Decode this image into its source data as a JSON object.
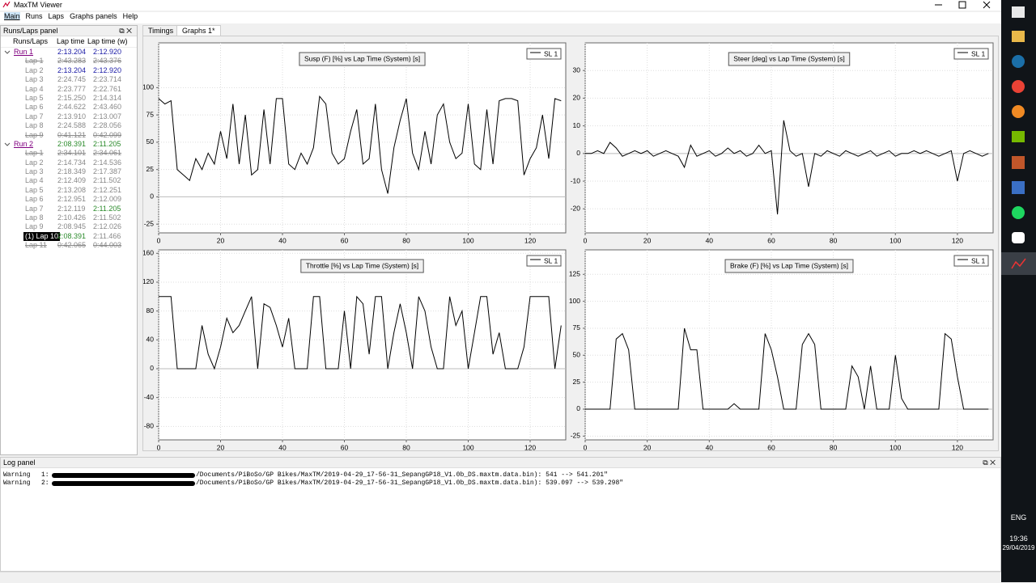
{
  "window": {
    "title": "MaxTM Viewer"
  },
  "menu": [
    "Main",
    "Runs",
    "Laps",
    "Graphs panels",
    "Help"
  ],
  "laps_panel": {
    "title": "Runs/Laps panel",
    "headers": [
      "Runs/Laps",
      "Lap time",
      "Lap time (w)"
    ],
    "runs": [
      {
        "name": "Run 1",
        "time": "2:13.204",
        "time_w": "2:12.920",
        "time_color": "#1a1aa6",
        "time_w_color": "#1a1aa6",
        "laps": [
          {
            "name": "Lap 1",
            "time": "2:43.283",
            "time_w": "2:43.376",
            "struck": true
          },
          {
            "name": "Lap 2",
            "time": "2:13.204",
            "time_w": "2:12.920",
            "time_color": "#1a1aa6",
            "time_w_color": "#1a1aa6"
          },
          {
            "name": "Lap 3",
            "time": "2:24.745",
            "time_w": "2:23.714"
          },
          {
            "name": "Lap 4",
            "time": "2:23.777",
            "time_w": "2:22.761"
          },
          {
            "name": "Lap 5",
            "time": "2:15.250",
            "time_w": "2:14.314"
          },
          {
            "name": "Lap 6",
            "time": "2:44.622",
            "time_w": "2:43.460"
          },
          {
            "name": "Lap 7",
            "time": "2:13.910",
            "time_w": "2:13.007"
          },
          {
            "name": "Lap 8",
            "time": "2:24.588",
            "time_w": "2:28.056"
          },
          {
            "name": "Lap 9",
            "time": "0:41.121",
            "time_w": "0:42.099",
            "struck": true
          }
        ]
      },
      {
        "name": "Run 2",
        "time": "2:08.391",
        "time_w": "2:11.205",
        "time_color": "#2a8a2a",
        "time_w_color": "#2a8a2a",
        "laps": [
          {
            "name": "Lap 1",
            "time": "2:34.101",
            "time_w": "2:34.061",
            "struck": true
          },
          {
            "name": "Lap 2",
            "time": "2:14.734",
            "time_w": "2:14.536"
          },
          {
            "name": "Lap 3",
            "time": "2:18.349",
            "time_w": "2:17.387"
          },
          {
            "name": "Lap 4",
            "time": "2:12.409",
            "time_w": "2:11.502"
          },
          {
            "name": "Lap 5",
            "time": "2:13.208",
            "time_w": "2:12.251"
          },
          {
            "name": "Lap 6",
            "time": "2:12.951",
            "time_w": "2:12.009"
          },
          {
            "name": "Lap 7",
            "time": "2:12.119",
            "time_w": "2:11.205",
            "time_w_color": "#2a8a2a"
          },
          {
            "name": "Lap 8",
            "time": "2:10.426",
            "time_w": "2:11.502"
          },
          {
            "name": "Lap 9",
            "time": "2:08.945",
            "time_w": "2:12.026"
          },
          {
            "name": "(1) Lap 10",
            "time": "2:08.391",
            "time_w": "2:11.466",
            "time_color": "#2a8a2a",
            "selected": true
          },
          {
            "name": "Lap 11",
            "time": "0:42.065",
            "time_w": "0:44.003",
            "struck": true
          }
        ]
      }
    ]
  },
  "tabs": [
    "Timings",
    "Graphs 1*"
  ],
  "chart_data": [
    {
      "type": "line",
      "title": "Susp (F) [%] vs Lap Time (System) [s]",
      "grid": true,
      "xlim": [
        0,
        131.5
      ],
      "xticks": [
        0,
        20,
        40,
        60,
        80,
        100,
        120
      ],
      "ylim": [
        -33,
        141
      ],
      "yticks": [
        -25,
        0,
        25,
        50,
        75,
        100
      ],
      "x": [
        0,
        2,
        4,
        6,
        8,
        10,
        12,
        14,
        16,
        18,
        20,
        22,
        24,
        26,
        28,
        30,
        32,
        34,
        36,
        38,
        40,
        42,
        44,
        46,
        48,
        50,
        52,
        54,
        56,
        58,
        60,
        62,
        64,
        66,
        68,
        70,
        72,
        74,
        76,
        78,
        80,
        82,
        84,
        86,
        88,
        90,
        92,
        94,
        96,
        98,
        100,
        102,
        104,
        106,
        108,
        110,
        112,
        114,
        116,
        118,
        120,
        122,
        124,
        126,
        128,
        130
      ],
      "series": [
        {
          "name": "SL 1",
          "color": "#000000",
          "values": [
            90,
            85,
            88,
            25,
            20,
            15,
            35,
            25,
            40,
            30,
            60,
            35,
            85,
            30,
            75,
            20,
            25,
            80,
            30,
            90,
            90,
            30,
            25,
            40,
            30,
            45,
            92,
            85,
            40,
            30,
            35,
            60,
            80,
            30,
            35,
            85,
            25,
            3,
            45,
            70,
            90,
            40,
            25,
            60,
            30,
            75,
            85,
            50,
            35,
            40,
            85,
            30,
            25,
            80,
            30,
            88,
            90,
            90,
            88,
            20,
            35,
            45,
            75,
            35,
            90,
            88
          ]
        }
      ]
    },
    {
      "type": "line",
      "title": "Steer [deg] vs Lap Time (System) [s]",
      "grid": true,
      "xlim": [
        0,
        131.5
      ],
      "xticks": [
        0,
        20,
        40,
        60,
        80,
        100,
        120
      ],
      "ylim": [
        -28.7,
        40
      ],
      "yticks": [
        -20,
        -10,
        0,
        10,
        20,
        30
      ],
      "x": [
        0,
        2,
        4,
        6,
        8,
        10,
        12,
        14,
        16,
        18,
        20,
        22,
        24,
        26,
        28,
        30,
        32,
        34,
        36,
        38,
        40,
        42,
        44,
        46,
        48,
        50,
        52,
        54,
        56,
        58,
        60,
        62,
        64,
        66,
        68,
        70,
        72,
        74,
        76,
        78,
        80,
        82,
        84,
        86,
        88,
        90,
        92,
        94,
        96,
        98,
        100,
        102,
        104,
        106,
        108,
        110,
        112,
        114,
        116,
        118,
        120,
        122,
        124,
        126,
        128,
        130
      ],
      "series": [
        {
          "name": "SL 1",
          "color": "#000000",
          "values": [
            0,
            0,
            1,
            0,
            4,
            2,
            -1,
            0,
            1,
            0,
            1,
            -1,
            0,
            1,
            0,
            -1,
            -5,
            3,
            -1,
            0,
            1,
            -1,
            0,
            2,
            0,
            1,
            -1,
            0,
            3,
            0,
            1,
            -22,
            12,
            1,
            -1,
            0,
            -12,
            0,
            -1,
            1,
            0,
            -1,
            1,
            0,
            -1,
            0,
            1,
            -1,
            0,
            1,
            -1,
            0,
            0,
            1,
            0,
            1,
            0,
            -1,
            0,
            1,
            -10,
            0,
            1,
            0,
            -1,
            0
          ]
        }
      ]
    },
    {
      "type": "line",
      "title": "Throttle [%] vs Lap Time (System) [s]",
      "grid": true,
      "xlim": [
        0,
        131.5
      ],
      "xticks": [
        0,
        20,
        40,
        60,
        80,
        100,
        120
      ],
      "ylim": [
        -98.7,
        164.8
      ],
      "yticks": [
        -80,
        -40,
        0,
        40,
        80,
        120,
        160
      ],
      "x": [
        0,
        2,
        4,
        6,
        8,
        10,
        12,
        14,
        16,
        18,
        20,
        22,
        24,
        26,
        28,
        30,
        32,
        34,
        36,
        38,
        40,
        42,
        44,
        46,
        48,
        50,
        52,
        54,
        56,
        58,
        60,
        62,
        64,
        66,
        68,
        70,
        72,
        74,
        76,
        78,
        80,
        82,
        84,
        86,
        88,
        90,
        92,
        94,
        96,
        98,
        100,
        102,
        104,
        106,
        108,
        110,
        112,
        114,
        116,
        118,
        120,
        122,
        124,
        126,
        128,
        130
      ],
      "series": [
        {
          "name": "SL 1",
          "color": "#000000",
          "values": [
            100,
            100,
            100,
            0,
            0,
            0,
            0,
            60,
            20,
            0,
            30,
            70,
            50,
            60,
            80,
            100,
            0,
            90,
            85,
            60,
            30,
            70,
            0,
            0,
            0,
            100,
            100,
            0,
            0,
            0,
            80,
            0,
            100,
            90,
            20,
            100,
            100,
            0,
            50,
            90,
            50,
            0,
            100,
            80,
            30,
            0,
            0,
            100,
            60,
            80,
            0,
            50,
            100,
            100,
            20,
            50,
            0,
            0,
            0,
            30,
            100,
            100,
            100,
            100,
            0,
            60
          ]
        }
      ]
    },
    {
      "type": "line",
      "title": "Brake (F) [%] vs Lap Time (System) [s]",
      "grid": true,
      "xlim": [
        0,
        131.5
      ],
      "xticks": [
        0,
        20,
        40,
        60,
        80,
        100,
        120
      ],
      "ylim": [
        -28.5,
        147.7
      ],
      "yticks": [
        -25,
        0,
        25,
        50,
        75,
        100,
        125
      ],
      "x": [
        0,
        2,
        4,
        6,
        8,
        10,
        12,
        14,
        16,
        18,
        20,
        22,
        24,
        26,
        28,
        30,
        32,
        34,
        36,
        38,
        40,
        42,
        44,
        46,
        48,
        50,
        52,
        54,
        56,
        58,
        60,
        62,
        64,
        66,
        68,
        70,
        72,
        74,
        76,
        78,
        80,
        82,
        84,
        86,
        88,
        90,
        92,
        94,
        96,
        98,
        100,
        102,
        104,
        106,
        108,
        110,
        112,
        114,
        116,
        118,
        120,
        122,
        124,
        126,
        128,
        130
      ],
      "series": [
        {
          "name": "SL 1",
          "color": "#000000",
          "values": [
            0,
            0,
            0,
            0,
            0,
            65,
            70,
            55,
            0,
            0,
            0,
            0,
            0,
            0,
            0,
            0,
            75,
            55,
            55,
            0,
            0,
            0,
            0,
            0,
            5,
            0,
            0,
            0,
            0,
            70,
            55,
            30,
            0,
            0,
            0,
            60,
            70,
            60,
            0,
            0,
            0,
            0,
            0,
            40,
            30,
            0,
            40,
            0,
            0,
            0,
            50,
            10,
            0,
            0,
            0,
            0,
            0,
            0,
            70,
            65,
            30,
            0,
            0,
            0,
            0,
            0
          ]
        }
      ]
    }
  ],
  "log_panel": {
    "title": "Log panel",
    "lines": [
      {
        "level": "Warning",
        "num": "1:",
        "text": "/Documents/PiBoSo/GP Bikes/MaxTM/2019-04-29_17-56-31_SepangGP18_V1.0b_DS.maxtm.data.bin): 541 --> 541.201\""
      },
      {
        "level": "Warning",
        "num": "2:",
        "text": "/Documents/PiBoSo/GP Bikes/MaxTM/2019-04-29_17-56-31_SepangGP18_V1.0b_DS.maxtm.data.bin): 539.097 --> 539.298\""
      }
    ]
  },
  "taskbar": {
    "lang": "ENG",
    "time": "19:36",
    "date": "29/04/2019"
  }
}
